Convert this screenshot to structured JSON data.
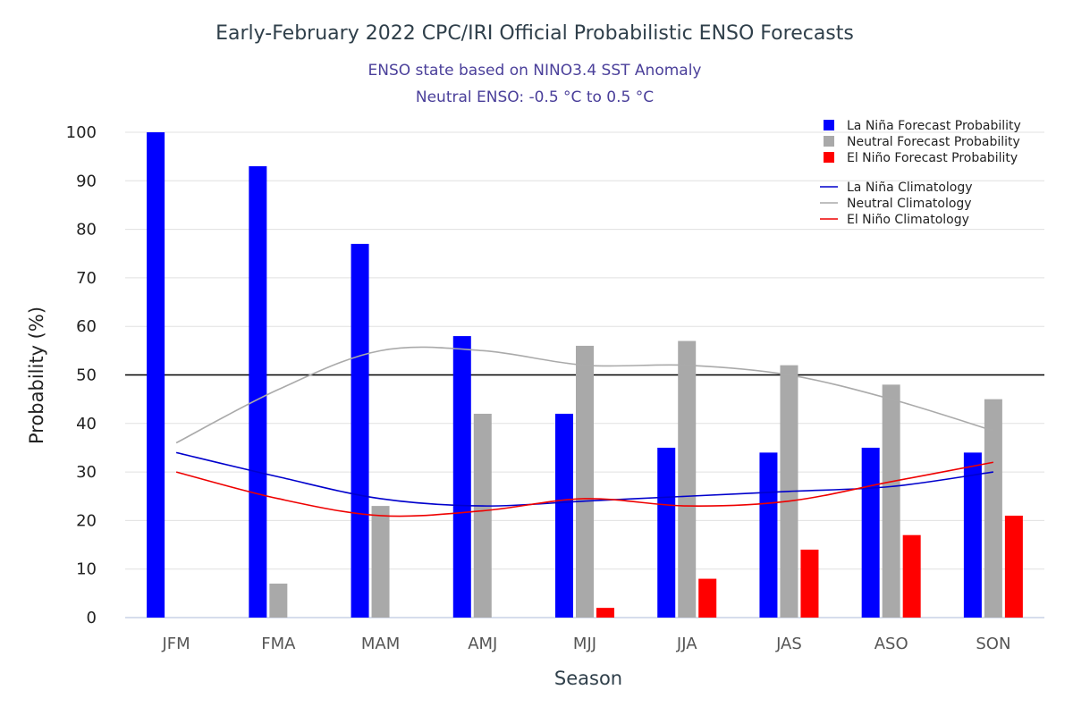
{
  "chart_data": {
    "type": "bar",
    "title": "Early-February 2022 CPC/IRI Official Probabilistic ENSO Forecasts",
    "subtitle_lines": [
      "ENSO state based on NINO3.4 SST Anomaly",
      "Neutral ENSO: -0.5 °C to 0.5 °C"
    ],
    "xlabel": "Season",
    "ylabel": "Probability (%)",
    "ylim": [
      0,
      100
    ],
    "yticks": [
      0,
      10,
      20,
      30,
      40,
      50,
      60,
      70,
      80,
      90,
      100
    ],
    "categories": [
      "JFM",
      "FMA",
      "MAM",
      "AMJ",
      "MJJ",
      "JJA",
      "JAS",
      "ASO",
      "SON"
    ],
    "reference_line": 50,
    "series": [
      {
        "name": "La Niña Forecast Probability",
        "color": "#0000ff",
        "values": [
          100,
          93,
          77,
          58,
          42,
          35,
          34,
          35,
          34
        ]
      },
      {
        "name": "Neutral Forecast Probability",
        "color": "#a9a9a9",
        "values": [
          0,
          7,
          23,
          42,
          56,
          57,
          52,
          48,
          45
        ]
      },
      {
        "name": "El Niño Forecast Probability",
        "color": "#ff0000",
        "values": [
          0,
          0,
          0,
          0,
          2,
          8,
          14,
          17,
          21
        ]
      }
    ],
    "lines": [
      {
        "name": "La Niña Climatology",
        "color": "#0000cc",
        "values": [
          34,
          29,
          24.5,
          23,
          24,
          25,
          26,
          27,
          30
        ]
      },
      {
        "name": "Neutral Climatology",
        "color": "#aaaaaa",
        "values": [
          36,
          47,
          55,
          55,
          52,
          52,
          50,
          45,
          38.5
        ]
      },
      {
        "name": "El Niño Climatology",
        "color": "#ee0000",
        "values": [
          30,
          24.5,
          21,
          22,
          24.5,
          23,
          24,
          28,
          32
        ]
      }
    ]
  }
}
